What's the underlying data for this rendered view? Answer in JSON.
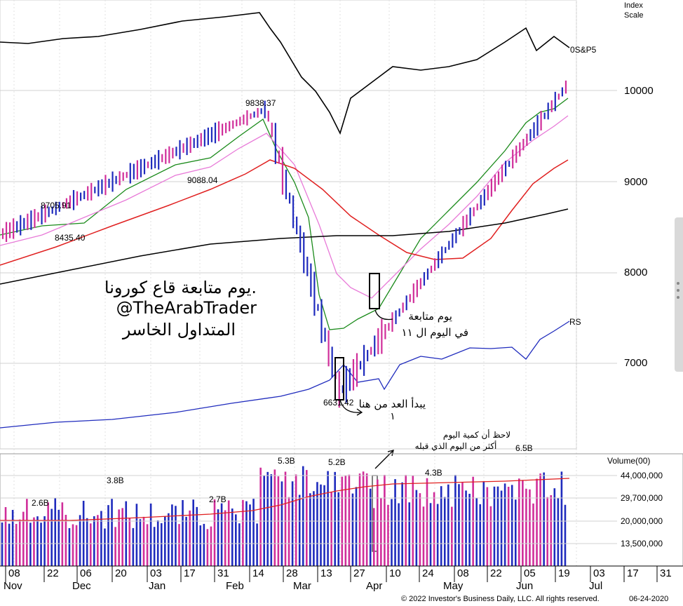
{
  "header": {
    "index_label_1": "Index",
    "index_label_2": "Scale"
  },
  "chart_data": [
    {
      "type": "bar",
      "subtype": "ohlc-price-chart",
      "title": "",
      "ylabel": "",
      "y_scale": "log",
      "ylim": [
        6000,
        11000
      ],
      "y_ticks": [
        "10000",
        "9000",
        "8000",
        "7000"
      ],
      "x_ticks": [
        "08",
        "22",
        "06",
        "20",
        "03",
        "17",
        "31",
        "14",
        "28",
        "13",
        "27",
        "10",
        "24",
        "08",
        "22",
        "05",
        "19",
        "03",
        "17",
        "31"
      ],
      "month_labels": [
        "Nov",
        "Dec",
        "Jan",
        "Feb",
        "Mar",
        "Apr",
        "May",
        "Jun",
        "Jul"
      ],
      "grid": true,
      "series": [
        {
          "name": "0S&P5",
          "role": "comparison index line",
          "color": "#000000"
        },
        {
          "name": "RS",
          "role": "relative strength line",
          "color": "#1f2bbd"
        },
        {
          "role": "moving average",
          "color": "#1a8a1a"
        },
        {
          "role": "moving average",
          "color": "#e87ad8"
        },
        {
          "role": "moving average",
          "color": "#e02020"
        },
        {
          "role": "moving average",
          "color": "#000000"
        }
      ],
      "price_labels": [
        "8705.91",
        "8435.40",
        "9088.04",
        "9838.37",
        "6631.42"
      ],
      "annotations": {
        "title_ar": "يوم متابعة قاع كورونا.",
        "handle": "@TheArabTrader",
        "sub_ar": "المتداول الخاسر",
        "follow_day_1": "يوم متابعة",
        "follow_day_2": "في اليوم ال ١١",
        "count_start": "يبدأ العد من هنا",
        "count_one": "١",
        "volume_note_1": "لاحظ أن كمية اليوم",
        "volume_note_2": "أكثر من اليوم الذي قبله"
      }
    },
    {
      "type": "bar",
      "subtype": "volume",
      "ylabel": "Volume(00)",
      "y_ticks": [
        "44,000,000",
        "29,700,000",
        "20,000,000",
        "13,500,000"
      ],
      "bar_labels": [
        "2.6B",
        "3.8B",
        "2.7B",
        "5.3B",
        "5.2B",
        "4.3B",
        "6.5B"
      ],
      "series": [
        {
          "role": "50-day average volume",
          "color": "#e02020"
        }
      ]
    }
  ],
  "footer": {
    "copyright": "© 2022 Investor's Business Daily, LLC. All rights reserved.",
    "date": "06-24-2020"
  }
}
